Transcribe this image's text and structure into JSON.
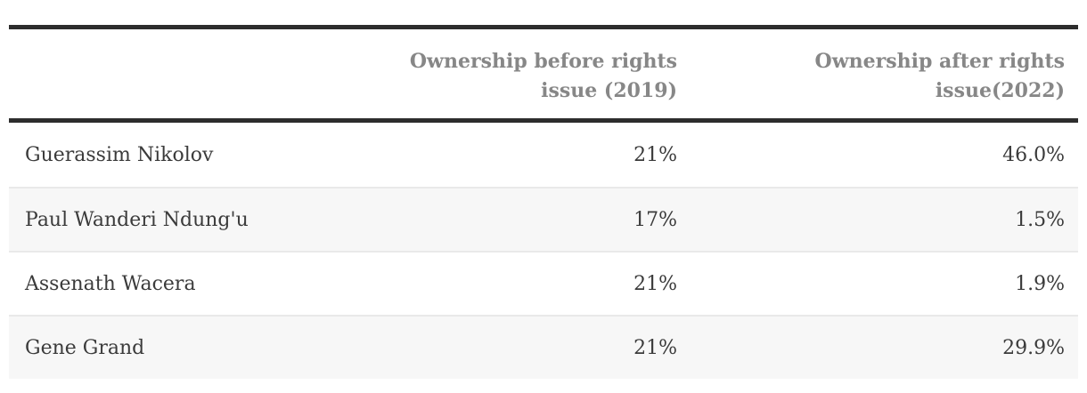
{
  "colors": {
    "rule": "#2d2d2d",
    "header-text": "#878787",
    "body-text": "#3b3b3b",
    "row-alt-bg": "#f7f7f7",
    "row-border": "#e9e9e9",
    "page-bg": "#ffffff"
  },
  "chart_data": {
    "type": "table",
    "title": "",
    "columns": [
      "",
      "Ownership before rights issue (2019)",
      "Ownership after rights issue(2022)"
    ],
    "rows": [
      {
        "name": "Guerassim Nikolov",
        "before": "21%",
        "after": "46.0%"
      },
      {
        "name": "Paul Wanderi Ndung'u",
        "before": "17%",
        "after": "1.5%"
      },
      {
        "name": "Assenath Wacera",
        "before": "21%",
        "after": "1.9%"
      },
      {
        "name": "Gene Grand",
        "before": "21%",
        "after": "29.9%"
      }
    ]
  }
}
